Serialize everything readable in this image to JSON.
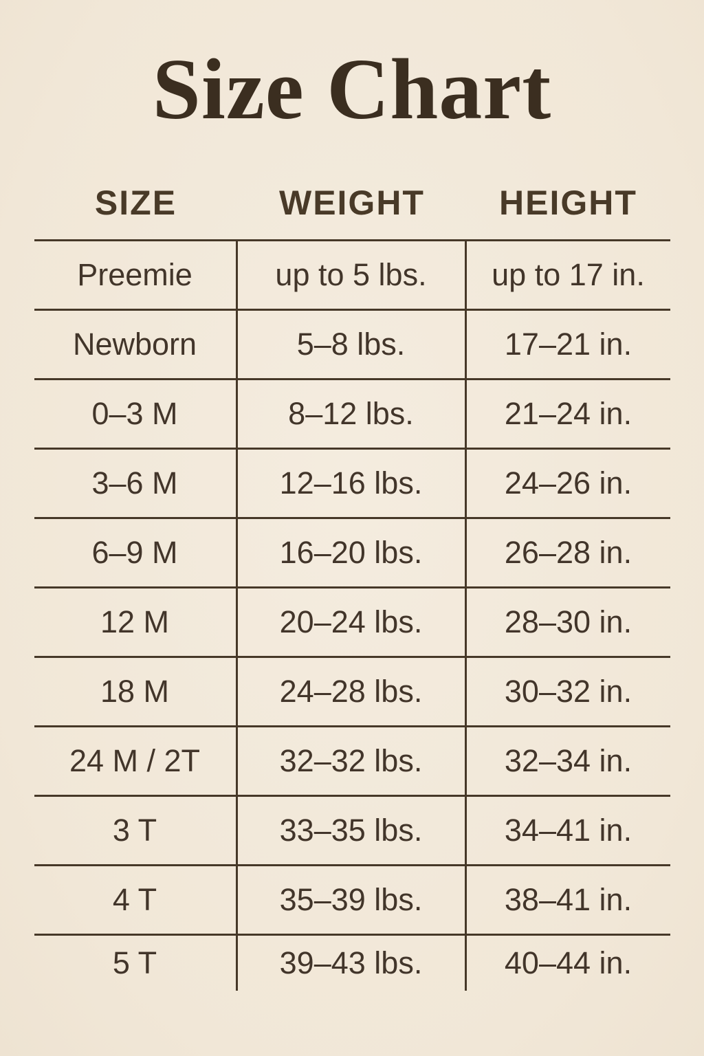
{
  "title": "Size Chart",
  "colors": {
    "background": "#f2e8da",
    "text": "#42352a",
    "title_text": "#3b2e20",
    "line": "#463828"
  },
  "chart_data": {
    "type": "table",
    "title": "Size Chart",
    "columns": [
      "SIZE",
      "WEIGHT",
      "HEIGHT"
    ],
    "rows": [
      [
        "Preemie",
        "up to 5 lbs.",
        "up to 17 in."
      ],
      [
        "Newborn",
        "5–8 lbs.",
        "17–21 in."
      ],
      [
        "0–3 M",
        "8–12 lbs.",
        "21–24 in."
      ],
      [
        "3–6 M",
        "12–16 lbs.",
        "24–26 in."
      ],
      [
        "6–9 M",
        "16–20 lbs.",
        "26–28 in."
      ],
      [
        "12 M",
        "20–24 lbs.",
        "28–30 in."
      ],
      [
        "18 M",
        "24–28 lbs.",
        "30–32 in."
      ],
      [
        "24 M / 2T",
        "32–32 lbs.",
        "32–34 in."
      ],
      [
        "3 T",
        "33–35 lbs.",
        "34–41 in."
      ],
      [
        "4 T",
        "35–39 lbs.",
        "38–41 in."
      ],
      [
        "5 T",
        "39–43 lbs.",
        "40–44 in."
      ]
    ]
  }
}
